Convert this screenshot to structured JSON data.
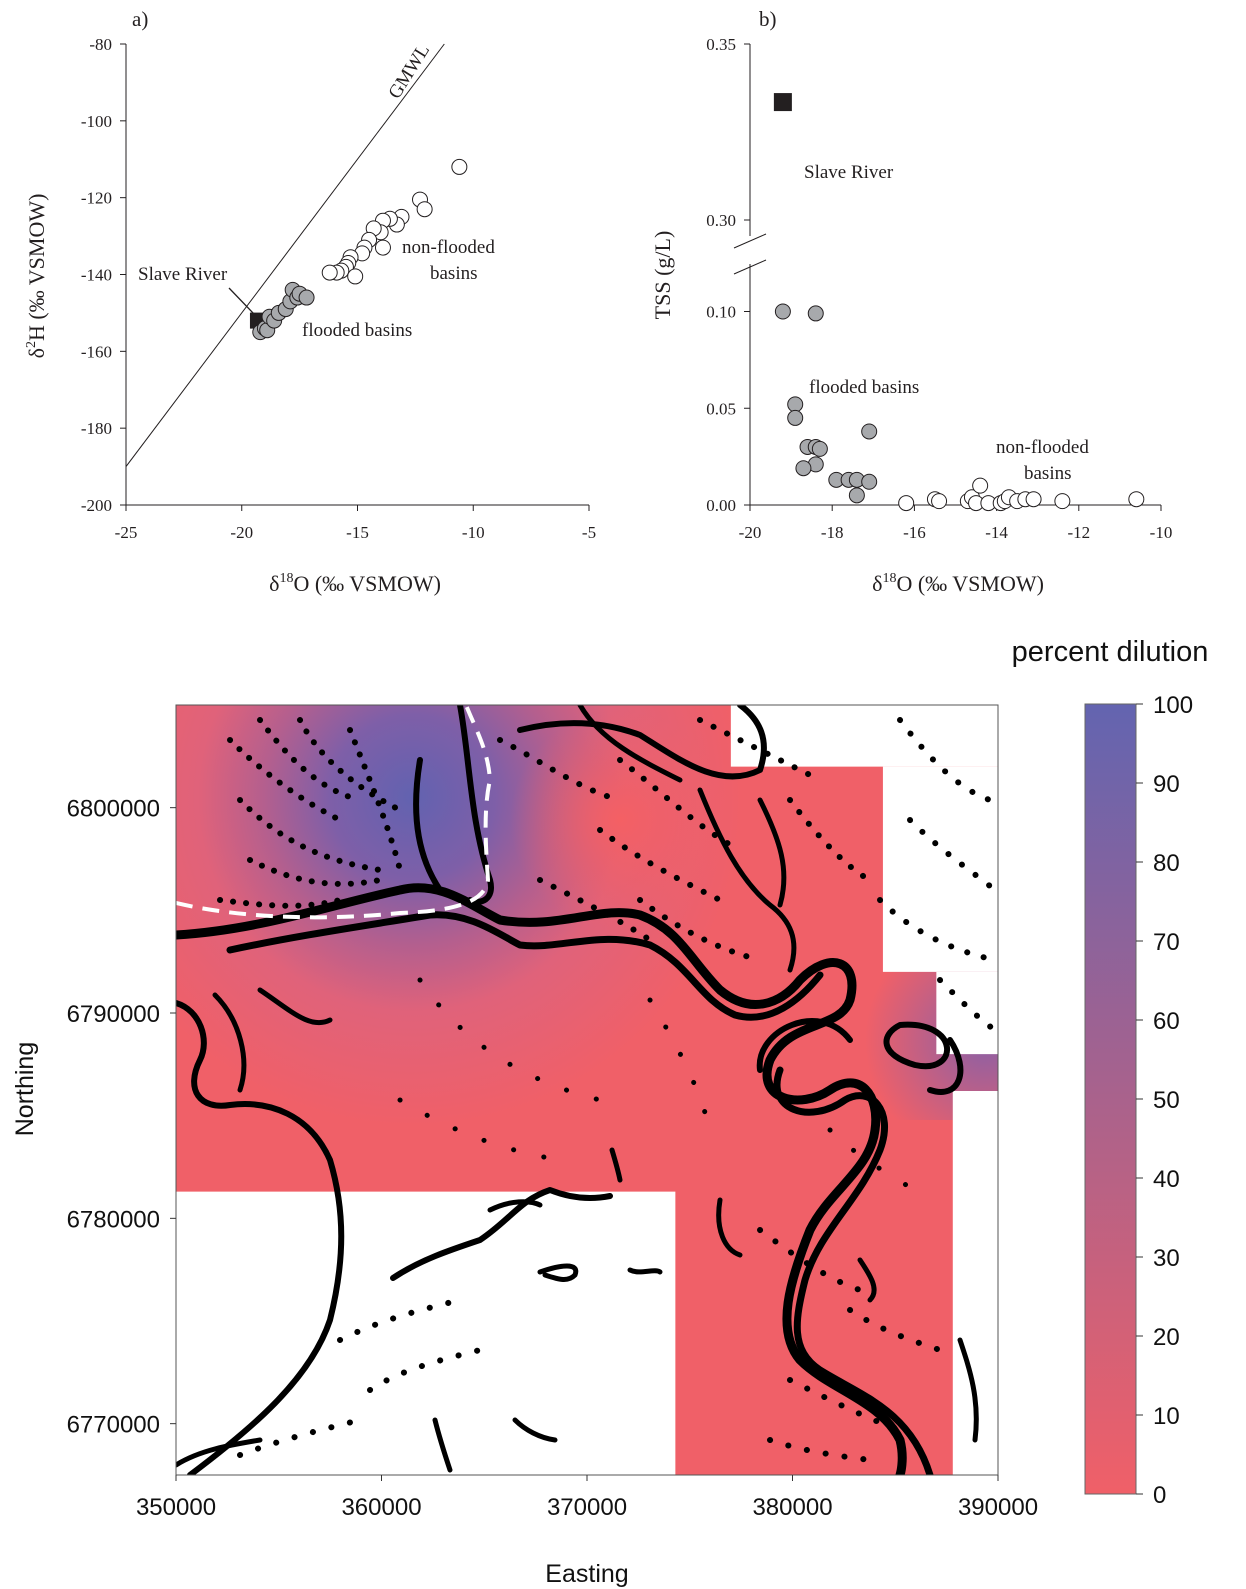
{
  "chart_data": [
    {
      "type": "scatter",
      "panel_label": "a)",
      "xlabel_parts": [
        "δ",
        "18",
        "O (‰ VSMOW)"
      ],
      "ylabel_parts": [
        "δ",
        "2",
        "H (‰ VSMOW)"
      ],
      "xlim": [
        -25,
        -5
      ],
      "ylim": [
        -200,
        -80
      ],
      "xticks": [
        -25,
        -20,
        -15,
        -10,
        -5
      ],
      "yticks": [
        -80,
        -100,
        -120,
        -140,
        -160,
        -180,
        -200
      ],
      "gmwl": {
        "label": "GMWL",
        "slope": 8,
        "intercept": 10
      },
      "annotations": {
        "slave_river": "Slave River",
        "non_flooded_line1": "non-flooded",
        "non_flooded_line2": "basins",
        "flooded": "flooded basins"
      },
      "series": [
        {
          "kind": "slave-river",
          "color": "#231f20",
          "points": [
            [
              -19.3,
              -152
            ]
          ]
        },
        {
          "kind": "flooded",
          "color": "#a7a9ac",
          "points": [
            [
              -19.2,
              -155
            ],
            [
              -19.0,
              -154
            ],
            [
              -18.9,
              -154.5
            ],
            [
              -18.8,
              -151
            ],
            [
              -18.6,
              -152
            ],
            [
              -18.4,
              -150
            ],
            [
              -18.1,
              -149
            ],
            [
              -17.9,
              -147
            ],
            [
              -17.8,
              -144
            ],
            [
              -17.6,
              -146
            ],
            [
              -17.5,
              -145
            ],
            [
              -17.2,
              -146
            ]
          ]
        },
        {
          "kind": "non-flooded",
          "color": "#ffffff",
          "points": [
            [
              -10.6,
              -112
            ],
            [
              -12.3,
              -120.5
            ],
            [
              -12.1,
              -123
            ],
            [
              -13.1,
              -125
            ],
            [
              -13.3,
              -127
            ],
            [
              -13.6,
              -125.5
            ],
            [
              -13.9,
              -126
            ],
            [
              -14.0,
              -129
            ],
            [
              -14.3,
              -128
            ],
            [
              -14.5,
              -131
            ],
            [
              -14.7,
              -133
            ],
            [
              -14.8,
              -134.5
            ],
            [
              -13.9,
              -133
            ],
            [
              -15.3,
              -135.5
            ],
            [
              -15.4,
              -137
            ],
            [
              -15.5,
              -138
            ],
            [
              -15.7,
              -139
            ],
            [
              -15.1,
              -140.5
            ],
            [
              -15.9,
              -139.5
            ],
            [
              -16.2,
              -139.5
            ]
          ]
        }
      ]
    },
    {
      "type": "scatter",
      "panel_label": "b)",
      "xlabel_parts": [
        "δ",
        "18",
        "O (‰ VSMOW)"
      ],
      "ylabel": "TSS (g/L)",
      "xlim": [
        -20,
        -10
      ],
      "xticks": [
        -20,
        -18,
        -16,
        -14,
        -12,
        -10
      ],
      "yticks_lower": [
        "0.00",
        "0.05",
        "0.10"
      ],
      "yticks_upper": [
        "0.30",
        "0.35"
      ],
      "broken_axis": {
        "lower": [
          0,
          0.12
        ],
        "upper": [
          0.29,
          0.35
        ]
      },
      "annotations": {
        "slave_river": "Slave River",
        "flooded": "flooded basins",
        "non_flooded_line1": "non-flooded",
        "non_flooded_line2": "basins"
      },
      "series": [
        {
          "kind": "slave-river",
          "color": "#231f20",
          "points": [
            [
              -19.2,
              0.3335
            ]
          ]
        },
        {
          "kind": "flooded",
          "color": "#a7a9ac",
          "points": [
            [
              -19.2,
              0.1
            ],
            [
              -18.4,
              0.099
            ],
            [
              -18.9,
              0.052
            ],
            [
              -18.9,
              0.045
            ],
            [
              -18.6,
              0.03
            ],
            [
              -18.4,
              0.03
            ],
            [
              -18.3,
              0.029
            ],
            [
              -18.4,
              0.021
            ],
            [
              -18.7,
              0.019
            ],
            [
              -17.1,
              0.038
            ],
            [
              -17.9,
              0.013
            ],
            [
              -17.6,
              0.013
            ],
            [
              -17.4,
              0.013
            ],
            [
              -17.1,
              0.012
            ],
            [
              -17.4,
              0.005
            ]
          ]
        },
        {
          "kind": "non-flooded",
          "color": "#ffffff",
          "points": [
            [
              -16.2,
              0.001
            ],
            [
              -15.5,
              0.003
            ],
            [
              -15.4,
              0.002
            ],
            [
              -14.7,
              0.002
            ],
            [
              -14.6,
              0.004
            ],
            [
              -14.5,
              0.001
            ],
            [
              -14.4,
              0.01
            ],
            [
              -14.2,
              0.001
            ],
            [
              -13.9,
              0.001
            ],
            [
              -13.8,
              0.002
            ],
            [
              -13.7,
              0.004
            ],
            [
              -13.5,
              0.002
            ],
            [
              -13.3,
              0.003
            ],
            [
              -13.1,
              0.003
            ],
            [
              -12.4,
              0.002
            ],
            [
              -10.6,
              0.003
            ]
          ]
        }
      ]
    },
    {
      "type": "heatmap",
      "xlabel": "Easting",
      "ylabel": "Northing",
      "xlim": [
        350000,
        390000
      ],
      "ylim": [
        6767500,
        6805000
      ],
      "xticks": [
        "350000",
        "360000",
        "370000",
        "380000",
        "390000"
      ],
      "yticks": [
        "6800000",
        "6790000",
        "6780000",
        "6770000"
      ],
      "colorbar": {
        "title": "percent dilution",
        "min": 0,
        "max": 100,
        "ticks": [
          "100",
          "90",
          "80",
          "70",
          "60",
          "50",
          "40",
          "30",
          "20",
          "10",
          "0"
        ],
        "color_low": "#f06068",
        "color_high": "#6364b0"
      },
      "high_dilution_center": [
        361500,
        6800500
      ],
      "regions_without_data": [
        [
          [
            350000,
            6767500
          ],
          [
            374300,
            6767500
          ],
          [
            374300,
            6781300
          ],
          [
            350000,
            6781300
          ]
        ],
        [
          [
            377000,
            6802000
          ],
          [
            390000,
            6802000
          ],
          [
            390000,
            6805000
          ],
          [
            377000,
            6805000
          ]
        ],
        [
          [
            384400,
            6792000
          ],
          [
            390000,
            6792000
          ],
          [
            390000,
            6802000
          ],
          [
            384400,
            6802000
          ]
        ],
        [
          [
            387000,
            6788000
          ],
          [
            390000,
            6788000
          ],
          [
            390000,
            6792000
          ],
          [
            387000,
            6792000
          ]
        ],
        [
          [
            387800,
            6767500
          ],
          [
            390000,
            6767500
          ],
          [
            390000,
            6786200
          ],
          [
            387800,
            6786200
          ]
        ]
      ]
    }
  ]
}
